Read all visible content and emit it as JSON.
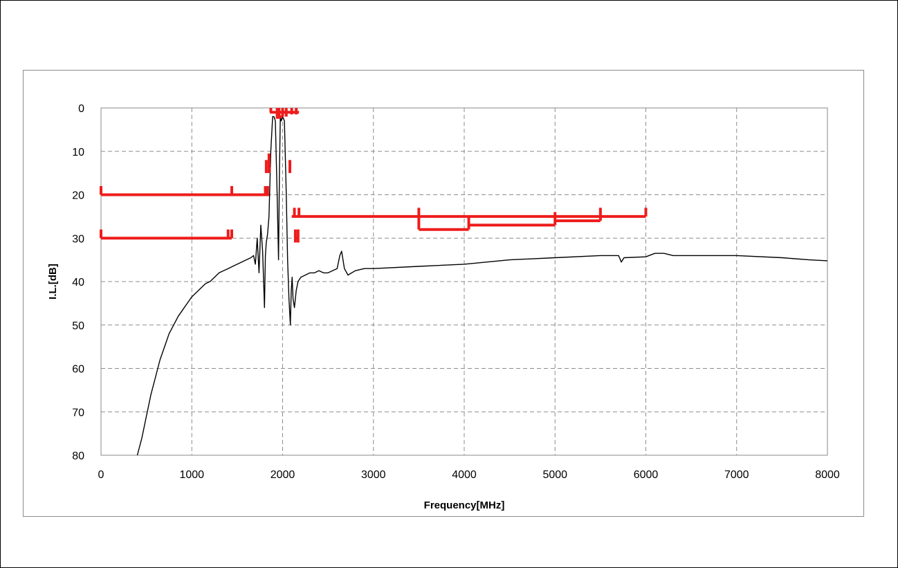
{
  "chart_data": {
    "type": "line",
    "title": "",
    "xlabel": "Frequency[MHz]",
    "ylabel": "I.L.[dB]",
    "xlim": [
      0,
      8000
    ],
    "ylim": [
      0,
      80
    ],
    "y_inverted": true,
    "x_ticks": [
      0,
      1000,
      2000,
      3000,
      4000,
      5000,
      6000,
      7000,
      8000
    ],
    "y_ticks": [
      0,
      10,
      20,
      30,
      40,
      50,
      60,
      70,
      80
    ],
    "grid": true,
    "grid_style": "dashed",
    "legend": "none",
    "colors": {
      "measurement": "#000000",
      "spec_mask": "#ee1c1c",
      "grid": "#8c8c8c"
    },
    "series": [
      {
        "color": "#000000",
        "x": [
          400,
          450,
          500,
          550,
          600,
          650,
          700,
          750,
          800,
          850,
          900,
          950,
          1000,
          1050,
          1100,
          1150,
          1200,
          1250,
          1300,
          1350,
          1400,
          1450,
          1500,
          1550,
          1600,
          1650,
          1680,
          1700,
          1720,
          1740,
          1760,
          1780,
          1800,
          1810,
          1820,
          1835,
          1850,
          1870,
          1890,
          1905,
          1920,
          1940,
          1955,
          1965,
          1975,
          1985,
          2000,
          2020,
          2040,
          2055,
          2070,
          2085,
          2095,
          2105,
          2115,
          2130,
          2150,
          2170,
          2200,
          2250,
          2300,
          2350,
          2400,
          2450,
          2500,
          2550,
          2600,
          2630,
          2650,
          2680,
          2720,
          2760,
          2800,
          2900,
          3000,
          3500,
          4000,
          4500,
          5000,
          5500,
          5700,
          5730,
          5760,
          6000,
          6100,
          6200,
          6300,
          6500,
          7000,
          7500,
          7800,
          8000
        ],
        "y": [
          80,
          76,
          71,
          66,
          62,
          58,
          55,
          52,
          50,
          48,
          46.5,
          45,
          43.5,
          42.5,
          41.5,
          40.5,
          40,
          39,
          38,
          37.5,
          37,
          36.5,
          36,
          35.5,
          35,
          34.5,
          34,
          36,
          30,
          38,
          27,
          33,
          46,
          34,
          31,
          29,
          25,
          10,
          2,
          2,
          3,
          20,
          35,
          15,
          2,
          3,
          2,
          3,
          20,
          35,
          44,
          50,
          42,
          39,
          44,
          46,
          42,
          40,
          39,
          38.5,
          38,
          38,
          37.5,
          38,
          38,
          37.5,
          37,
          34,
          33,
          37,
          38.5,
          38,
          37.5,
          37,
          37,
          36.5,
          36,
          35,
          34.5,
          34,
          34,
          35.5,
          34.5,
          34.3,
          33.5,
          33.5,
          34,
          34,
          34,
          34.5,
          35,
          35.2
        ]
      }
    ],
    "spec_segments": [
      {
        "x1": 0,
        "x2": 1850,
        "y": 20
      },
      {
        "x1": 0,
        "x2": 1440,
        "y": 30
      },
      {
        "x1": 1850,
        "x2": 1870,
        "y": 14
      },
      {
        "x1": 2070,
        "x2": 2090,
        "y": 14
      },
      {
        "x1": 2130,
        "x2": 2170,
        "y": 30
      },
      {
        "x1": 1860,
        "x2": 2180,
        "y": 1
      },
      {
        "x1": 1930,
        "x2": 2000,
        "y": 2
      },
      {
        "x1": 2100,
        "x2": 6000,
        "y": 25
      },
      {
        "x1": 3500,
        "x2": 4050,
        "y": 28
      },
      {
        "x1": 4050,
        "x2": 5000,
        "y": 27
      },
      {
        "x1": 5000,
        "x2": 5500,
        "y": 26
      }
    ],
    "spec_markers": [
      {
        "x": 0,
        "y1": 18,
        "y2": 20
      },
      {
        "x": 1440,
        "y1": 18,
        "y2": 20
      },
      {
        "x": 1810,
        "y1": 18,
        "y2": 20
      },
      {
        "x": 1835,
        "y1": 18,
        "y2": 20
      },
      {
        "x": 0,
        "y1": 28,
        "y2": 30
      },
      {
        "x": 1400,
        "y1": 28,
        "y2": 30
      },
      {
        "x": 1440,
        "y1": 28,
        "y2": 30
      },
      {
        "x": 1820,
        "y1": 12,
        "y2": 15
      },
      {
        "x": 1850,
        "y1": 10.5,
        "y2": 15
      },
      {
        "x": 2080,
        "y1": 12,
        "y2": 15
      },
      {
        "x": 2130,
        "y1": 23,
        "y2": 25
      },
      {
        "x": 2180,
        "y1": 23,
        "y2": 25
      },
      {
        "x": 2140,
        "y1": 28,
        "y2": 31
      },
      {
        "x": 2170,
        "y1": 28,
        "y2": 31
      },
      {
        "x": 1870,
        "y1": 0,
        "y2": 1
      },
      {
        "x": 1940,
        "y1": 0,
        "y2": 2.5
      },
      {
        "x": 1960,
        "y1": 0,
        "y2": 2.5
      },
      {
        "x": 2000,
        "y1": 0,
        "y2": 2
      },
      {
        "x": 2040,
        "y1": 0,
        "y2": 2
      },
      {
        "x": 2100,
        "y1": 0,
        "y2": 1.5
      },
      {
        "x": 2150,
        "y1": 0,
        "y2": 1.5
      },
      {
        "x": 3500,
        "y1": 23,
        "y2": 28
      },
      {
        "x": 4050,
        "y1": 25,
        "y2": 28
      },
      {
        "x": 5000,
        "y1": 24,
        "y2": 27
      },
      {
        "x": 5500,
        "y1": 23,
        "y2": 26
      },
      {
        "x": 6000,
        "y1": 23,
        "y2": 25
      }
    ]
  }
}
